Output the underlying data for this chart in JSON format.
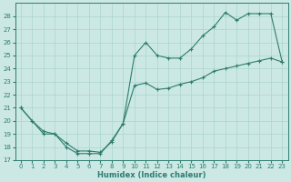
{
  "line1_x": [
    0,
    1,
    2,
    3,
    4,
    5,
    6,
    7,
    8,
    9,
    10,
    11,
    12,
    13,
    14,
    15,
    16,
    17,
    18,
    19,
    20,
    21,
    22,
    23
  ],
  "line1_y": [
    21,
    20,
    19,
    19,
    18,
    17.5,
    17.5,
    17.5,
    18.5,
    19.8,
    25.0,
    26.0,
    25.0,
    24.8,
    24.8,
    25.5,
    26.5,
    27.2,
    28.3,
    27.7,
    28.2,
    28.2,
    28.2,
    24.5
  ],
  "line2_x": [
    0,
    1,
    2,
    3,
    4,
    5,
    6,
    7,
    8,
    9,
    10,
    11,
    12,
    13,
    14,
    15,
    16,
    17,
    18,
    19,
    20,
    21,
    22,
    23
  ],
  "line2_y": [
    21,
    20,
    19.2,
    19,
    18.3,
    17.7,
    17.7,
    17.6,
    18.4,
    19.8,
    22.7,
    22.9,
    22.4,
    22.5,
    22.8,
    23.0,
    23.3,
    23.8,
    24.0,
    24.2,
    24.4,
    24.6,
    24.8,
    24.5
  ],
  "line_color": "#2e7d6e",
  "bg_color": "#cce8e4",
  "grid_color": "#aad4ce",
  "xlabel": "Humidex (Indice chaleur)",
  "ylim": [
    17,
    29
  ],
  "xlim": [
    -0.5,
    23.5
  ],
  "yticks": [
    17,
    18,
    19,
    20,
    21,
    22,
    23,
    24,
    25,
    26,
    27,
    28
  ],
  "xticks": [
    0,
    1,
    2,
    3,
    4,
    5,
    6,
    7,
    8,
    9,
    10,
    11,
    12,
    13,
    14,
    15,
    16,
    17,
    18,
    19,
    20,
    21,
    22,
    23
  ],
  "marker": "+",
  "markersize": 3.5,
  "linewidth": 0.8,
  "markeredgewidth": 0.8,
  "tick_labelsize": 5,
  "xlabel_fontsize": 6,
  "xlabel_fontweight": "bold"
}
